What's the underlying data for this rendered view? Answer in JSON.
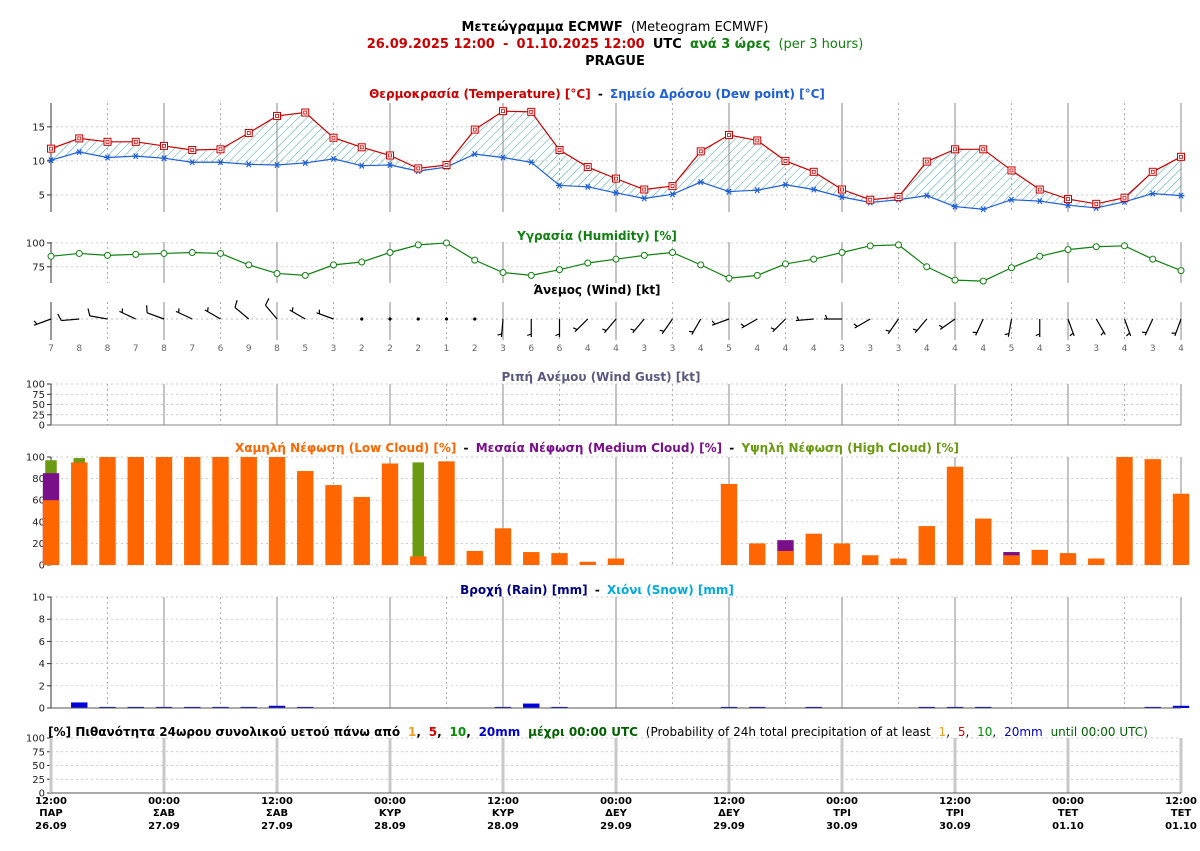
{
  "header": {
    "title_gr": "Μετεώγραμμα ECMWF",
    "title_en": "(Meteogram ECMWF)",
    "date_start": "26.09.2025 12:00",
    "date_sep": "-",
    "date_end": "01.10.2025 12:00",
    "utc": "UTC",
    "interval_gr": "ανά 3 ώρες",
    "interval_en": "(per 3 hours)",
    "location": "PRAGUE"
  },
  "panels": {
    "temperature": {
      "title_temp": "Θερμοκρασία (Temperature) [°C]",
      "sep": "-",
      "title_dew": "Σημείο Δρόσου (Dew point) [°C]",
      "yticks": [
        5,
        10,
        15
      ],
      "ylim": [
        2.5,
        18.5
      ]
    },
    "humidity": {
      "title": "Υγρασία (Humidity) [%]",
      "yticks": [
        75,
        100
      ],
      "ylim": [
        58,
        101
      ]
    },
    "wind": {
      "title": "Άνεμος (Wind) [kt]"
    },
    "gust": {
      "title": "Ριπή Ανέμου (Wind Gust) [kt]",
      "yticks": [
        0,
        25,
        50,
        75,
        100
      ],
      "ylim": [
        0,
        100
      ]
    },
    "cloud": {
      "title_low": "Χαμηλή Νέφωση (Low Cloud) [%]",
      "sep1": "-",
      "title_med": "Μεσαία Νέφωση (Medium Cloud) [%]",
      "sep2": "-",
      "title_high": "Υψηλή Νέφωση (High Cloud) [%]",
      "yticks": [
        0,
        20,
        40,
        60,
        80,
        100
      ],
      "ylim": [
        0,
        100
      ]
    },
    "precip": {
      "title_rain": "Βροχή (Rain) [mm]",
      "sep": "-",
      "title_snow": "Χιόνι (Snow) [mm]",
      "yticks": [
        0,
        2,
        4,
        6,
        8,
        10
      ],
      "ylim": [
        0,
        10
      ]
    },
    "probability": {
      "t1": "[%] Πιθανότητα 24ωρου συνολικού υετού πάνω από",
      "n1": "1",
      "c1": ",",
      "n5": "5",
      "c2": ",",
      "n10": "10",
      "c3": ",",
      "n20": "20mm",
      "t2": "μέχρι 00:00 UTC",
      "t3": "(Probability of 24h total precipitation of at least",
      "e1": "1",
      "ec1": ",",
      "e5": "5",
      "ec2": ",",
      "e10": "10",
      "ec3": ",",
      "e20": "20mm",
      "t4": "until 00:00 UTC)",
      "yticks": [
        0,
        25,
        50,
        75,
        100
      ],
      "ylim": [
        0,
        100
      ]
    }
  },
  "colors": {
    "temperature": "#cc0000",
    "dew_point": "#1f5fd6",
    "humidity": "#108010",
    "low_cloud": "#ff6600",
    "medium_cloud": "#7a0f8a",
    "high_cloud": "#6a9a10",
    "rain": "#0000dd",
    "snow": "#00aadd",
    "prob_1": "#f0a020",
    "prob_5": "#d00000",
    "prob_10": "#009000",
    "prob_20": "#0000cc"
  },
  "chart_data": {
    "type": "line",
    "x_labels": [
      {
        "time": "12:00",
        "day": "ΠΑΡ",
        "date": "26.09"
      },
      {
        "time": "00:00",
        "day": "ΣΑΒ",
        "date": "27.09"
      },
      {
        "time": "12:00",
        "day": "ΣΑΒ",
        "date": "27.09"
      },
      {
        "time": "00:00",
        "day": "ΚΥΡ",
        "date": "28.09"
      },
      {
        "time": "12:00",
        "day": "ΚΥΡ",
        "date": "28.09"
      },
      {
        "time": "00:00",
        "day": "ΔΕΥ",
        "date": "29.09"
      },
      {
        "time": "12:00",
        "day": "ΔΕΥ",
        "date": "29.09"
      },
      {
        "time": "00:00",
        "day": "ΤΡΙ",
        "date": "30.09"
      },
      {
        "time": "12:00",
        "day": "ΤΡΙ",
        "date": "30.09"
      },
      {
        "time": "00:00",
        "day": "ΤΕΤ",
        "date": "01.10"
      },
      {
        "time": "12:00",
        "day": "ΤΕΤ",
        "date": "01.10"
      }
    ],
    "temperature": [
      11.8,
      13.3,
      12.8,
      12.8,
      12.2,
      11.6,
      11.7,
      14.1,
      16.6,
      17.1,
      13.4,
      12.0,
      10.8,
      8.9,
      9.4,
      14.6,
      17.3,
      17.2,
      11.6,
      9.1,
      7.4,
      5.8,
      6.3,
      11.4,
      13.8,
      13.0,
      10.0,
      8.4,
      5.8,
      4.3,
      4.7,
      9.9,
      11.7,
      11.7,
      8.6,
      5.8,
      4.4,
      3.7,
      4.6,
      8.4,
      10.6
    ],
    "dew_point": [
      10.1,
      11.3,
      10.5,
      10.7,
      10.4,
      9.8,
      9.8,
      9.5,
      9.4,
      9.7,
      10.3,
      9.3,
      9.4,
      8.5,
      9.1,
      11.0,
      10.5,
      9.8,
      6.4,
      6.2,
      5.3,
      4.5,
      5.1,
      6.9,
      5.5,
      5.7,
      6.5,
      5.8,
      4.7,
      3.9,
      4.3,
      4.9,
      3.3,
      2.9,
      4.3,
      4.1,
      3.5,
      3.1,
      4.0,
      5.2,
      4.9
    ],
    "humidity": [
      86,
      89,
      87,
      88,
      89,
      90,
      89,
      77,
      68,
      66,
      77,
      80,
      90,
      98,
      100,
      82,
      69,
      66,
      72,
      79,
      83,
      87,
      90,
      77,
      63,
      66,
      78,
      83,
      90,
      97,
      98,
      75,
      61,
      60,
      74,
      86,
      93,
      96,
      97,
      83,
      71
    ],
    "wind_speed": [
      7,
      8,
      8,
      7,
      8,
      7,
      6,
      9,
      8,
      5,
      3,
      2,
      2,
      2,
      1,
      2,
      3,
      6,
      6,
      4,
      4,
      3,
      3,
      4,
      5,
      4,
      4,
      4,
      3,
      3,
      3,
      4,
      4,
      4,
      5,
      4,
      3,
      3,
      4,
      3,
      4
    ],
    "wind_dir_deg": [
      250,
      265,
      280,
      295,
      290,
      295,
      300,
      310,
      320,
      300,
      290,
      280,
      220,
      200,
      150,
      200,
      185,
      180,
      180,
      225,
      220,
      220,
      215,
      210,
      250,
      240,
      225,
      265,
      270,
      240,
      215,
      220,
      235,
      205,
      190,
      180,
      160,
      150,
      160,
      205,
      200
    ],
    "low_cloud": [
      60,
      95,
      100,
      100,
      100,
      100,
      100,
      100,
      100,
      87,
      74,
      63,
      94,
      8,
      96,
      13,
      34,
      12,
      11,
      3,
      6,
      0,
      0,
      0,
      75,
      20,
      13,
      29,
      20,
      9,
      6,
      36,
      91,
      43,
      9,
      14,
      11,
      6,
      100,
      98,
      66
    ],
    "medium_cloud": [
      85,
      0,
      0,
      0,
      0,
      0,
      0,
      0,
      0,
      0,
      0,
      0,
      0,
      0,
      0,
      0,
      0,
      0,
      0,
      0,
      0,
      0,
      0,
      0,
      0,
      0,
      23,
      0,
      0,
      0,
      0,
      0,
      0,
      0,
      12,
      0,
      0,
      0,
      0,
      0,
      0
    ],
    "high_cloud": [
      97,
      99,
      0,
      0,
      0,
      0,
      0,
      0,
      0,
      0,
      0,
      0,
      0,
      95,
      0,
      0,
      0,
      0,
      0,
      0,
      0,
      0,
      0,
      0,
      0,
      0,
      0,
      0,
      0,
      0,
      0,
      0,
      0,
      0,
      0,
      0,
      0,
      0,
      0,
      0,
      0
    ],
    "rain": [
      0,
      0.5,
      0.1,
      0.1,
      0.1,
      0.1,
      0.1,
      0.1,
      0.2,
      0.1,
      0,
      0,
      0,
      0,
      0,
      0,
      0.1,
      0.4,
      0.1,
      0,
      0,
      0,
      0,
      0,
      0.1,
      0.1,
      0,
      0.1,
      0,
      0,
      0,
      0.1,
      0.1,
      0.1,
      0,
      0,
      0,
      0,
      0,
      0.1,
      0.2
    ],
    "snow": [],
    "wind_gust": [],
    "probability": []
  }
}
